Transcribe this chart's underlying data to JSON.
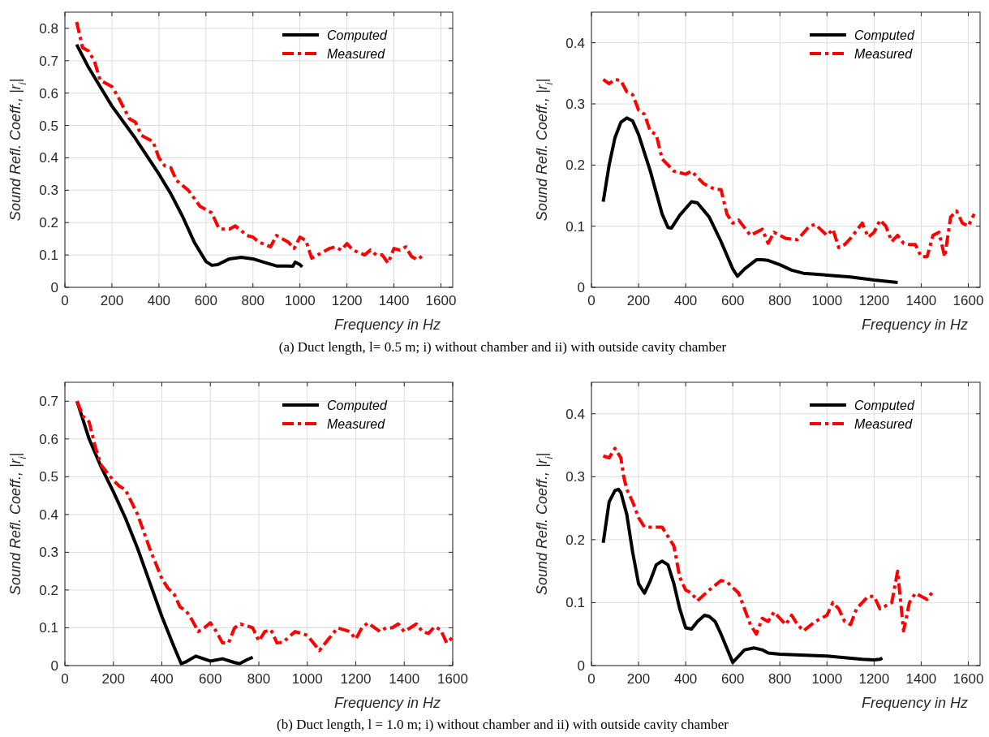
{
  "chart_data": [
    {
      "type": "line",
      "xlabel": "Frequency in Hz",
      "ylabel": "Sound Refl. Coeff., |r$_{i}$|",
      "xlim": [
        0,
        1650
      ],
      "ylim": [
        0,
        0.85
      ],
      "xticks": [
        0,
        200,
        400,
        600,
        800,
        1000,
        1200,
        1400,
        1600
      ],
      "yticks": [
        0,
        0.1,
        0.2,
        0.3,
        0.4,
        0.5,
        0.6,
        0.7,
        0.8
      ],
      "grid": true,
      "legend": "top right",
      "annotations": [
        "(a)    Duct length, l= 0.5 m; i) without chamber and ii) with outside cavity chamber"
      ],
      "series": [
        {
          "name": "Computed",
          "color": "#000000",
          "line_style": "solid",
          "x": [
            50,
            100,
            150,
            200,
            300,
            400,
            450,
            500,
            550,
            600,
            625,
            650,
            700,
            750,
            800,
            850,
            900,
            950,
            970,
            980,
            1000,
            1010
          ],
          "values": [
            0.75,
            0.68,
            0.62,
            0.56,
            0.46,
            0.35,
            0.29,
            0.22,
            0.14,
            0.08,
            0.068,
            0.07,
            0.088,
            0.093,
            0.088,
            0.077,
            0.066,
            0.066,
            0.065,
            0.078,
            0.07,
            0.063
          ]
        },
        {
          "name": "Measured",
          "color": "#ff0000",
          "line_style": "dashdot",
          "x": [
            50,
            75,
            100,
            125,
            150,
            200,
            225,
            275,
            300,
            325,
            375,
            400,
            425,
            450,
            475,
            525,
            575,
            600,
            625,
            650,
            660,
            675,
            700,
            725,
            775,
            800,
            825,
            875,
            900,
            925,
            950,
            975,
            1000,
            1025,
            1050,
            1075,
            1125,
            1150,
            1175,
            1200,
            1225,
            1275,
            1300,
            1325,
            1350,
            1375,
            1400,
            1425,
            1450,
            1475,
            1500,
            1525
          ],
          "values": [
            0.82,
            0.74,
            0.73,
            0.7,
            0.64,
            0.62,
            0.59,
            0.52,
            0.51,
            0.47,
            0.45,
            0.4,
            0.375,
            0.37,
            0.33,
            0.3,
            0.25,
            0.24,
            0.23,
            0.19,
            0.18,
            0.18,
            0.18,
            0.19,
            0.16,
            0.155,
            0.14,
            0.125,
            0.16,
            0.15,
            0.14,
            0.12,
            0.155,
            0.145,
            0.09,
            0.1,
            0.12,
            0.125,
            0.115,
            0.135,
            0.115,
            0.1,
            0.115,
            0.1,
            0.1,
            0.075,
            0.12,
            0.115,
            0.125,
            0.095,
            0.085,
            0.1
          ]
        }
      ]
    },
    {
      "type": "line",
      "xlabel": "Frequency in Hz",
      "ylabel": "Sound Refl. Coeff., |r$_{i}$|",
      "xlim": [
        0,
        1650
      ],
      "ylim": [
        0,
        0.45
      ],
      "xticks": [
        0,
        200,
        400,
        600,
        800,
        1000,
        1200,
        1400,
        1600
      ],
      "yticks": [
        0,
        0.1,
        0.2,
        0.3,
        0.4
      ],
      "grid": true,
      "legend": "top right",
      "series": [
        {
          "name": "Computed",
          "color": "#000000",
          "line_style": "solid",
          "x": [
            50,
            75,
            100,
            125,
            150,
            175,
            200,
            250,
            300,
            325,
            340,
            375,
            425,
            450,
            500,
            550,
            600,
            620,
            650,
            700,
            725,
            750,
            800,
            850,
            900,
            1000,
            1100,
            1200,
            1300
          ],
          "values": [
            0.14,
            0.2,
            0.245,
            0.27,
            0.277,
            0.272,
            0.25,
            0.19,
            0.12,
            0.098,
            0.097,
            0.118,
            0.14,
            0.138,
            0.115,
            0.075,
            0.03,
            0.018,
            0.03,
            0.045,
            0.045,
            0.044,
            0.037,
            0.028,
            0.023,
            0.02,
            0.017,
            0.012,
            0.008
          ]
        },
        {
          "name": "Measured",
          "color": "#ff0000",
          "line_style": "dashdot",
          "x": [
            50,
            75,
            100,
            125,
            150,
            175,
            200,
            225,
            250,
            275,
            300,
            350,
            400,
            425,
            475,
            525,
            550,
            575,
            600,
            625,
            675,
            725,
            750,
            775,
            825,
            875,
            925,
            950,
            1000,
            1025,
            1050,
            1075,
            1100,
            1150,
            1175,
            1200,
            1225,
            1250,
            1275,
            1300,
            1325,
            1350,
            1375,
            1400,
            1425,
            1450,
            1475,
            1500,
            1525,
            1550,
            1575,
            1600,
            1625
          ],
          "values": [
            0.34,
            0.333,
            0.34,
            0.338,
            0.32,
            0.315,
            0.29,
            0.283,
            0.255,
            0.25,
            0.21,
            0.19,
            0.185,
            0.19,
            0.17,
            0.16,
            0.16,
            0.12,
            0.105,
            0.11,
            0.085,
            0.095,
            0.072,
            0.09,
            0.08,
            0.078,
            0.1,
            0.103,
            0.085,
            0.095,
            0.065,
            0.07,
            0.08,
            0.105,
            0.082,
            0.09,
            0.11,
            0.1,
            0.075,
            0.085,
            0.072,
            0.07,
            0.07,
            0.05,
            0.05,
            0.085,
            0.09,
            0.05,
            0.115,
            0.125,
            0.105,
            0.1,
            0.12
          ]
        }
      ]
    },
    {
      "type": "line",
      "xlabel": "Frequency in Hz",
      "ylabel": "Sound Refl. Coeff., |r$_{i}$|",
      "xlim": [
        0,
        1600
      ],
      "ylim": [
        0,
        0.75
      ],
      "xticks": [
        0,
        200,
        400,
        600,
        800,
        1000,
        1200,
        1400,
        1600
      ],
      "yticks": [
        0,
        0.1,
        0.2,
        0.3,
        0.4,
        0.5,
        0.6,
        0.7
      ],
      "grid": true,
      "legend": "top right",
      "annotations": [
        "(b)    Duct length, l = 1.0 m; i) without chamber and ii) with outside cavity chamber"
      ],
      "series": [
        {
          "name": "Computed",
          "color": "#000000",
          "line_style": "solid",
          "x": [
            50,
            100,
            150,
            200,
            250,
            300,
            350,
            400,
            450,
            480,
            500,
            540,
            600,
            650,
            700,
            720,
            750,
            775
          ],
          "values": [
            0.7,
            0.6,
            0.525,
            0.46,
            0.39,
            0.31,
            0.22,
            0.13,
            0.05,
            0.005,
            0.01,
            0.025,
            0.012,
            0.018,
            0.008,
            0.005,
            0.015,
            0.022
          ]
        },
        {
          "name": "Measured",
          "color": "#ff0000",
          "line_style": "dashdot",
          "x": [
            50,
            75,
            100,
            125,
            150,
            200,
            225,
            250,
            300,
            350,
            400,
            425,
            450,
            475,
            500,
            525,
            550,
            575,
            600,
            625,
            650,
            675,
            700,
            725,
            750,
            775,
            800,
            825,
            850,
            875,
            900,
            950,
            1000,
            1025,
            1050,
            1075,
            1125,
            1175,
            1200,
            1225,
            1250,
            1300,
            1325,
            1350,
            1375,
            1400,
            1425,
            1450,
            1475,
            1500,
            1525,
            1550,
            1575,
            1600
          ],
          "values": [
            0.7,
            0.66,
            0.645,
            0.58,
            0.53,
            0.49,
            0.475,
            0.465,
            0.4,
            0.31,
            0.23,
            0.205,
            0.19,
            0.155,
            0.145,
            0.12,
            0.09,
            0.1,
            0.113,
            0.09,
            0.06,
            0.06,
            0.1,
            0.11,
            0.105,
            0.1,
            0.065,
            0.09,
            0.095,
            0.06,
            0.062,
            0.09,
            0.08,
            0.06,
            0.04,
            0.06,
            0.1,
            0.09,
            0.07,
            0.1,
            0.113,
            0.09,
            0.1,
            0.1,
            0.11,
            0.09,
            0.1,
            0.11,
            0.09,
            0.085,
            0.103,
            0.095,
            0.06,
            0.075
          ]
        }
      ]
    },
    {
      "type": "line",
      "xlabel": "Frequency in Hz",
      "ylabel": "Sound Refl. Coeff., |r$_{i}$|",
      "xlim": [
        0,
        1650
      ],
      "ylim": [
        0,
        0.45
      ],
      "xticks": [
        0,
        200,
        400,
        600,
        800,
        1000,
        1200,
        1400,
        1600
      ],
      "yticks": [
        0,
        0.1,
        0.2,
        0.3,
        0.4
      ],
      "grid": true,
      "legend": "top right",
      "series": [
        {
          "name": "Computed",
          "color": "#000000",
          "line_style": "solid",
          "x": [
            50,
            75,
            100,
            115,
            125,
            150,
            175,
            200,
            225,
            250,
            275,
            300,
            325,
            350,
            375,
            400,
            425,
            450,
            480,
            500,
            525,
            550,
            600,
            625,
            650,
            690,
            725,
            750,
            800,
            1000,
            1150,
            1200,
            1225,
            1235
          ],
          "values": [
            0.195,
            0.26,
            0.278,
            0.28,
            0.275,
            0.24,
            0.18,
            0.13,
            0.115,
            0.135,
            0.16,
            0.166,
            0.16,
            0.13,
            0.09,
            0.06,
            0.058,
            0.07,
            0.08,
            0.078,
            0.07,
            0.05,
            0.005,
            0.015,
            0.025,
            0.028,
            0.025,
            0.02,
            0.018,
            0.015,
            0.01,
            0.009,
            0.01,
            0.012
          ]
        },
        {
          "name": "Measured",
          "color": "#ff0000",
          "line_style": "dashdot",
          "x": [
            50,
            75,
            100,
            125,
            137,
            150,
            175,
            200,
            225,
            250,
            300,
            350,
            375,
            400,
            425,
            450,
            500,
            550,
            575,
            625,
            650,
            675,
            700,
            725,
            750,
            775,
            825,
            850,
            875,
            900,
            950,
            1000,
            1025,
            1050,
            1075,
            1100,
            1125,
            1175,
            1200,
            1225,
            1275,
            1300,
            1325,
            1350,
            1375,
            1425,
            1450
          ],
          "values": [
            0.333,
            0.33,
            0.345,
            0.33,
            0.3,
            0.28,
            0.26,
            0.235,
            0.22,
            0.22,
            0.22,
            0.19,
            0.14,
            0.12,
            0.115,
            0.103,
            0.12,
            0.135,
            0.133,
            0.115,
            0.09,
            0.065,
            0.05,
            0.075,
            0.07,
            0.085,
            0.065,
            0.08,
            0.065,
            0.055,
            0.07,
            0.08,
            0.1,
            0.09,
            0.07,
            0.065,
            0.09,
            0.11,
            0.11,
            0.09,
            0.1,
            0.15,
            0.055,
            0.1,
            0.115,
            0.105,
            0.118
          ]
        }
      ]
    }
  ]
}
